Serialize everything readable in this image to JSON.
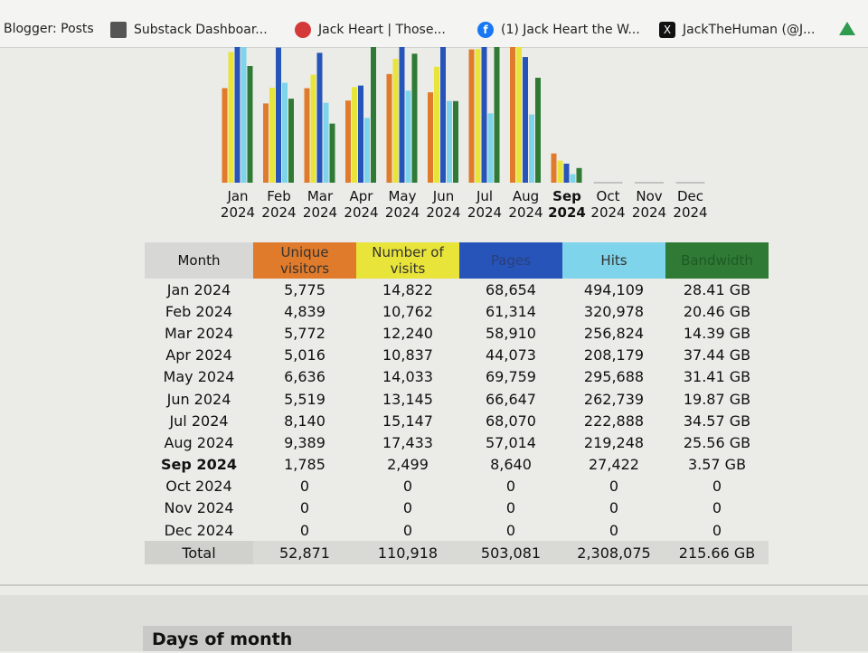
{
  "bookmarks": [
    {
      "label": "Blogger: Posts",
      "icon": "blogger-icon"
    },
    {
      "label": "Substack Dashboar...",
      "icon": "substack-icon"
    },
    {
      "label": "Jack Heart | Those...",
      "icon": "site-icon"
    },
    {
      "label": "(1) Jack Heart the W...",
      "icon": "facebook-icon"
    },
    {
      "label": "JackTheHuman (@J...",
      "icon": "x-icon"
    }
  ],
  "colors": {
    "unique_visitors": "#e07b2b",
    "visits": "#e8e43a",
    "pages": "#2754b8",
    "hits": "#7ed4ea",
    "bandwidth": "#2f7a35"
  },
  "chart_data": {
    "type": "bar",
    "categories": [
      "Jan 2024",
      "Feb 2024",
      "Mar 2024",
      "Apr 2024",
      "May 2024",
      "Jun 2024",
      "Jul 2024",
      "Aug 2024",
      "Sep 2024",
      "Oct 2024",
      "Nov 2024",
      "Dec 2024"
    ],
    "current_month": "Sep 2024",
    "series": [
      {
        "name": "Unique visitors",
        "values": [
          5775,
          4839,
          5772,
          5016,
          6636,
          5519,
          8140,
          9389,
          1785,
          0,
          0,
          0
        ]
      },
      {
        "name": "Number of visits",
        "values": [
          14822,
          10762,
          12240,
          10837,
          14033,
          13145,
          15147,
          17433,
          2499,
          0,
          0,
          0
        ]
      },
      {
        "name": "Pages",
        "values": [
          68654,
          61314,
          58910,
          44073,
          69759,
          66647,
          68070,
          57014,
          8640,
          0,
          0,
          0
        ]
      },
      {
        "name": "Hits",
        "values": [
          494109,
          320978,
          256824,
          208179,
          295688,
          262739,
          222888,
          219248,
          27422,
          0,
          0,
          0
        ]
      },
      {
        "name": "Bandwidth",
        "values": [
          28.41,
          20.46,
          14.39,
          37.44,
          31.41,
          19.87,
          34.57,
          25.56,
          3.57,
          0,
          0,
          0
        ]
      }
    ]
  },
  "month_labels": [
    [
      "Jan",
      "2024"
    ],
    [
      "Feb",
      "2024"
    ],
    [
      "Mar",
      "2024"
    ],
    [
      "Apr",
      "2024"
    ],
    [
      "May",
      "2024"
    ],
    [
      "Jun",
      "2024"
    ],
    [
      "Jul",
      "2024"
    ],
    [
      "Aug",
      "2024"
    ],
    [
      "Sep",
      "2024"
    ],
    [
      "Oct",
      "2024"
    ],
    [
      "Nov",
      "2024"
    ],
    [
      "Dec",
      "2024"
    ]
  ],
  "table": {
    "headers": {
      "month": "Month",
      "unique_visitors": "Unique visitors",
      "visits": "Number of visits",
      "pages": "Pages",
      "hits": "Hits",
      "bandwidth": "Bandwidth"
    },
    "rows": [
      [
        "Jan 2024",
        "5,775",
        "14,822",
        "68,654",
        "494,109",
        "28.41 GB"
      ],
      [
        "Feb 2024",
        "4,839",
        "10,762",
        "61,314",
        "320,978",
        "20.46 GB"
      ],
      [
        "Mar 2024",
        "5,772",
        "12,240",
        "58,910",
        "256,824",
        "14.39 GB"
      ],
      [
        "Apr 2024",
        "5,016",
        "10,837",
        "44,073",
        "208,179",
        "37.44 GB"
      ],
      [
        "May 2024",
        "6,636",
        "14,033",
        "69,759",
        "295,688",
        "31.41 GB"
      ],
      [
        "Jun 2024",
        "5,519",
        "13,145",
        "66,647",
        "262,739",
        "19.87 GB"
      ],
      [
        "Jul 2024",
        "8,140",
        "15,147",
        "68,070",
        "222,888",
        "34.57 GB"
      ],
      [
        "Aug 2024",
        "9,389",
        "17,433",
        "57,014",
        "219,248",
        "25.56 GB"
      ],
      [
        "Sep 2024",
        "1,785",
        "2,499",
        "8,640",
        "27,422",
        "3.57 GB"
      ],
      [
        "Oct 2024",
        "0",
        "0",
        "0",
        "0",
        "0"
      ],
      [
        "Nov 2024",
        "0",
        "0",
        "0",
        "0",
        "0"
      ],
      [
        "Dec 2024",
        "0",
        "0",
        "0",
        "0",
        "0"
      ]
    ],
    "total": [
      "Total",
      "52,871",
      "110,918",
      "503,081",
      "2,308,075",
      "215.66 GB"
    ]
  },
  "section_title": "Days of month"
}
